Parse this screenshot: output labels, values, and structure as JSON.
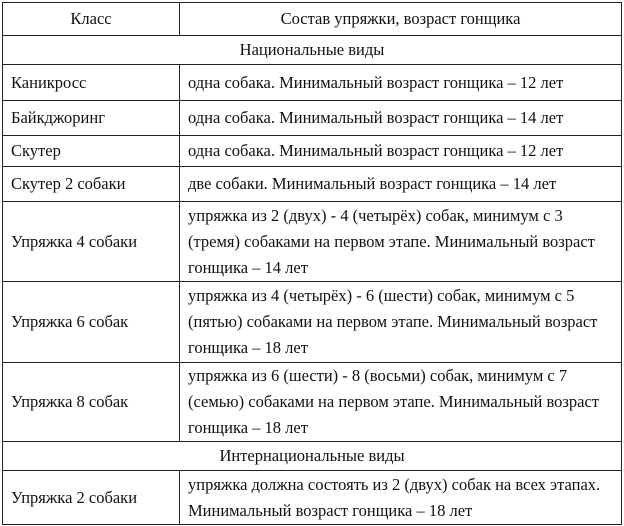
{
  "header": {
    "class": "Класс",
    "composition": "Состав упряжки, возраст гонщика"
  },
  "sections": [
    {
      "title": "Национальные виды",
      "rows": [
        {
          "class": "Каникросс",
          "composition": "одна собака. Минимальный возраст гонщика – 12 лет"
        },
        {
          "class": "Байкджоринг",
          "composition": "одна собака. Минимальный возраст гонщика – 14 лет"
        },
        {
          "class": "Скутер",
          "composition": "одна собака. Минимальный возраст гонщика – 12 лет"
        },
        {
          "class": "Скутер 2 собаки",
          "composition": "две собаки. Минимальный возраст гонщика – 14 лет"
        },
        {
          "class": "Упряжка 4 собаки",
          "composition": "упряжка из 2 (двух) - 4 (четырёх) собак, минимум с 3 (тремя) собаками на первом этапе. Минимальный возраст гонщика – 14 лет"
        },
        {
          "class": "Упряжка 6 собак",
          "composition": "упряжка из 4 (четырёх) - 6 (шести) собак, минимум с 5 (пятью) собаками на первом этапе. Минимальный возраст гонщика – 18 лет"
        },
        {
          "class": "Упряжка 8 собак",
          "composition": "упряжка из 6 (шести) - 8 (восьми) собак, минимум с 7 (семью) собаками на первом этапе. Минимальный возраст гонщика – 18 лет"
        }
      ]
    },
    {
      "title": "Интернациональные виды",
      "rows": [
        {
          "class": "Упряжка 2 собаки",
          "composition": "упряжка должна состоять из 2 (двух) собак на всех этапах. Минимальный возраст гонщика – 18 лет"
        }
      ]
    }
  ]
}
